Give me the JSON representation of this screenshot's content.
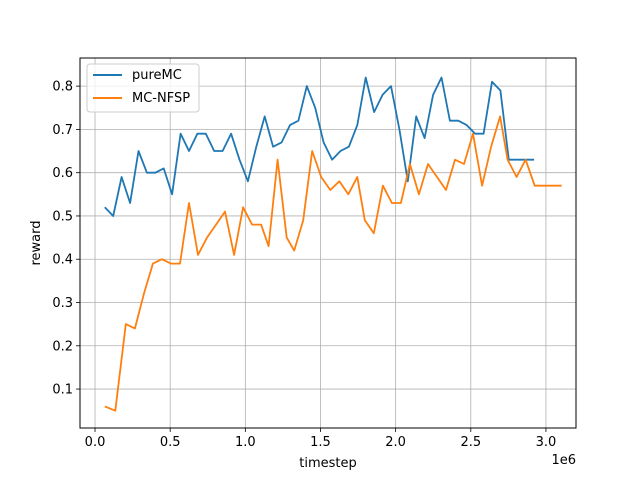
{
  "chart_data": {
    "type": "line",
    "title": "",
    "xlabel": "timestep",
    "ylabel": "reward",
    "x_offset_label": "1e6",
    "xlim": [
      -0.1,
      3.2
    ],
    "ylim": [
      0.01,
      0.865
    ],
    "x_ticks": [
      0.0,
      0.5,
      1.0,
      1.5,
      2.0,
      2.5,
      3.0
    ],
    "x_tick_labels": [
      "0.0",
      "0.5",
      "1.0",
      "1.5",
      "2.0",
      "2.5",
      "3.0"
    ],
    "y_ticks": [
      0.1,
      0.2,
      0.3,
      0.4,
      0.5,
      0.6,
      0.7,
      0.8
    ],
    "y_tick_labels": [
      "0.1",
      "0.2",
      "0.3",
      "0.4",
      "0.5",
      "0.6",
      "0.7",
      "0.8"
    ],
    "grid": true,
    "legend_position": "top-left",
    "series": [
      {
        "name": "pureMC",
        "color": "#1f77b4",
        "x": [
          0.065,
          0.121,
          0.177,
          0.233,
          0.289,
          0.345,
          0.401,
          0.457,
          0.513,
          0.569,
          0.625,
          0.681,
          0.737,
          0.793,
          0.849,
          0.905,
          0.961,
          1.017,
          1.073,
          1.129,
          1.185,
          1.241,
          1.297,
          1.353,
          1.409,
          1.465,
          1.521,
          1.577,
          1.633,
          1.689,
          1.745,
          1.801,
          1.857,
          1.913,
          1.969,
          2.025,
          2.081,
          2.137,
          2.193,
          2.249,
          2.305,
          2.361,
          2.417,
          2.473,
          2.529,
          2.585,
          2.641,
          2.697,
          2.753,
          2.809,
          2.865,
          2.921
        ],
        "y": [
          0.52,
          0.5,
          0.59,
          0.53,
          0.65,
          0.6,
          0.6,
          0.61,
          0.55,
          0.69,
          0.65,
          0.69,
          0.69,
          0.65,
          0.65,
          0.69,
          0.63,
          0.58,
          0.66,
          0.73,
          0.66,
          0.67,
          0.71,
          0.72,
          0.8,
          0.75,
          0.67,
          0.63,
          0.65,
          0.66,
          0.71,
          0.82,
          0.74,
          0.78,
          0.8,
          0.7,
          0.58,
          0.73,
          0.68,
          0.78,
          0.82,
          0.72,
          0.72,
          0.71,
          0.69,
          0.69,
          0.81,
          0.79,
          0.63,
          0.63,
          0.63,
          0.63
        ]
      },
      {
        "name": "MC-NFSP",
        "color": "#ff7f0e",
        "x": [
          0.065,
          0.135,
          0.205,
          0.265,
          0.325,
          0.385,
          0.445,
          0.505,
          0.565,
          0.625,
          0.685,
          0.745,
          0.805,
          0.865,
          0.925,
          0.985,
          1.045,
          1.105,
          1.155,
          1.215,
          1.275,
          1.325,
          1.385,
          1.445,
          1.505,
          1.565,
          1.625,
          1.685,
          1.745,
          1.795,
          1.855,
          1.915,
          1.975,
          2.035,
          2.095,
          2.155,
          2.215,
          2.275,
          2.335,
          2.395,
          2.455,
          2.515,
          2.575,
          2.635,
          2.695,
          2.745,
          2.805,
          2.865,
          2.925,
          2.985,
          3.045,
          3.105
        ],
        "y": [
          0.06,
          0.05,
          0.25,
          0.24,
          0.32,
          0.39,
          0.4,
          0.39,
          0.39,
          0.53,
          0.41,
          0.45,
          0.48,
          0.51,
          0.41,
          0.52,
          0.48,
          0.48,
          0.43,
          0.63,
          0.45,
          0.42,
          0.49,
          0.65,
          0.59,
          0.56,
          0.58,
          0.55,
          0.59,
          0.49,
          0.46,
          0.57,
          0.53,
          0.53,
          0.62,
          0.55,
          0.62,
          0.59,
          0.56,
          0.63,
          0.62,
          0.69,
          0.57,
          0.66,
          0.73,
          0.63,
          0.59,
          0.63,
          0.57,
          0.57,
          0.57,
          0.57
        ]
      }
    ]
  }
}
